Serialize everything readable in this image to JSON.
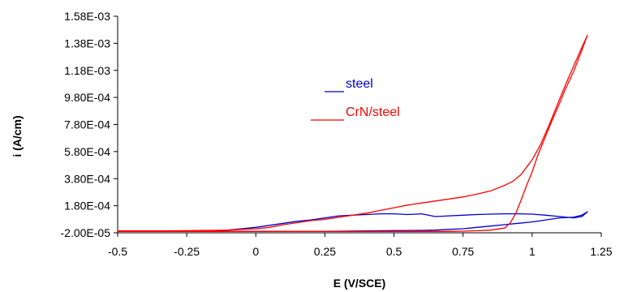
{
  "chart_data": {
    "type": "line",
    "xlabel": "E (V/SCE)",
    "ylabel": "i (A/cm)",
    "xlim": [
      -0.5,
      1.25
    ],
    "ylim": [
      -2e-05,
      0.00158
    ],
    "x_ticks": [
      "-0.5",
      "-0.25",
      "0",
      "0.25",
      "0.5",
      "0.75",
      "1",
      "1.25"
    ],
    "y_ticks": [
      "-2.00E-05",
      "1.80E-04",
      "3.80E-04",
      "5.80E-04",
      "7.80E-04",
      "9.80E-04",
      "1.18E-03",
      "1.38E-03",
      "1.58E-03"
    ],
    "grid": false,
    "legend_position": "upper-middle",
    "series": [
      {
        "name": "steel",
        "color": "#0000cc",
        "x": [
          -0.5,
          -0.3,
          -0.2,
          -0.15,
          -0.1,
          0.0,
          0.05,
          0.1,
          0.15,
          0.2,
          0.25,
          0.3,
          0.4,
          0.45,
          0.5,
          0.55,
          0.6,
          0.65,
          0.7,
          0.75,
          0.8,
          0.85,
          0.9,
          0.95,
          1.0,
          1.05,
          1.1,
          1.15,
          1.18,
          1.2,
          1.2,
          1.18,
          1.15,
          1.1,
          1.05,
          1.0,
          0.95,
          0.9,
          0.85,
          0.8,
          0.75,
          0.7,
          0.65,
          0.6,
          0.5,
          0.4,
          0.3,
          0.2,
          0.0,
          -0.2,
          -0.5
        ],
        "y": [
          -1e-05,
          -1e-05,
          -8e-06,
          -5e-06,
          0.0,
          2e-05,
          3.5e-05,
          5e-05,
          6.5e-05,
          7.5e-05,
          9e-05,
          0.000105,
          0.000115,
          0.00012,
          0.00012,
          0.000115,
          0.00012,
          0.0001,
          0.000105,
          0.00011,
          0.000115,
          0.000118,
          0.00012,
          0.00012,
          0.000118,
          0.00011,
          0.0001,
          9e-05,
          0.0001,
          0.000135,
          0.000135,
          0.00011,
          9.5e-05,
          9e-05,
          7.5e-05,
          6e-05,
          5e-05,
          4e-05,
          3e-05,
          2e-05,
          1e-05,
          5e-06,
          0.0,
          -2e-06,
          -4e-06,
          -6e-06,
          -8e-06,
          -1e-05,
          -1e-05,
          -1e-05,
          -1e-05
        ]
      },
      {
        "name": "CrN/steel",
        "color": "#ff0000",
        "x": [
          -0.5,
          -0.3,
          -0.2,
          -0.1,
          0.0,
          0.05,
          0.1,
          0.15,
          0.2,
          0.25,
          0.3,
          0.35,
          0.4,
          0.45,
          0.5,
          0.55,
          0.6,
          0.65,
          0.7,
          0.75,
          0.8,
          0.85,
          0.9,
          0.93,
          0.96,
          1.0,
          1.03,
          1.06,
          1.09,
          1.12,
          1.15,
          1.18,
          1.2,
          1.2,
          1.18,
          1.15,
          1.12,
          1.1,
          1.07,
          1.05,
          1.02,
          1.0,
          0.98,
          0.96,
          0.94,
          0.92,
          0.9,
          0.85,
          0.8,
          0.75,
          0.7,
          0.6,
          0.5,
          0.4,
          0.3,
          0.2,
          0.0,
          -0.2,
          -0.5
        ],
        "y": [
          -5e-06,
          -5e-06,
          -3e-06,
          0.0,
          1e-05,
          2e-05,
          4e-05,
          5.5e-05,
          7e-05,
          8e-05,
          9.5e-05,
          0.00011,
          0.000125,
          0.000145,
          0.000165,
          0.000185,
          0.0002,
          0.000215,
          0.00023,
          0.000245,
          0.000265,
          0.00029,
          0.00033,
          0.00036,
          0.00041,
          0.00052,
          0.00063,
          0.00077,
          0.00092,
          0.00107,
          0.00121,
          0.00135,
          0.00144,
          0.00144,
          0.00133,
          0.00117,
          0.00104,
          0.00094,
          0.0008,
          0.0007,
          0.00055,
          0.00043,
          0.00033,
          0.00022,
          0.00012,
          5e-05,
          1.5e-05,
          0.0,
          -5e-06,
          -8e-06,
          -1e-05,
          -1e-05,
          -1e-05,
          -1e-05,
          -1e-05,
          -1e-05,
          -1e-05,
          -1e-05,
          -1e-05
        ]
      }
    ]
  }
}
